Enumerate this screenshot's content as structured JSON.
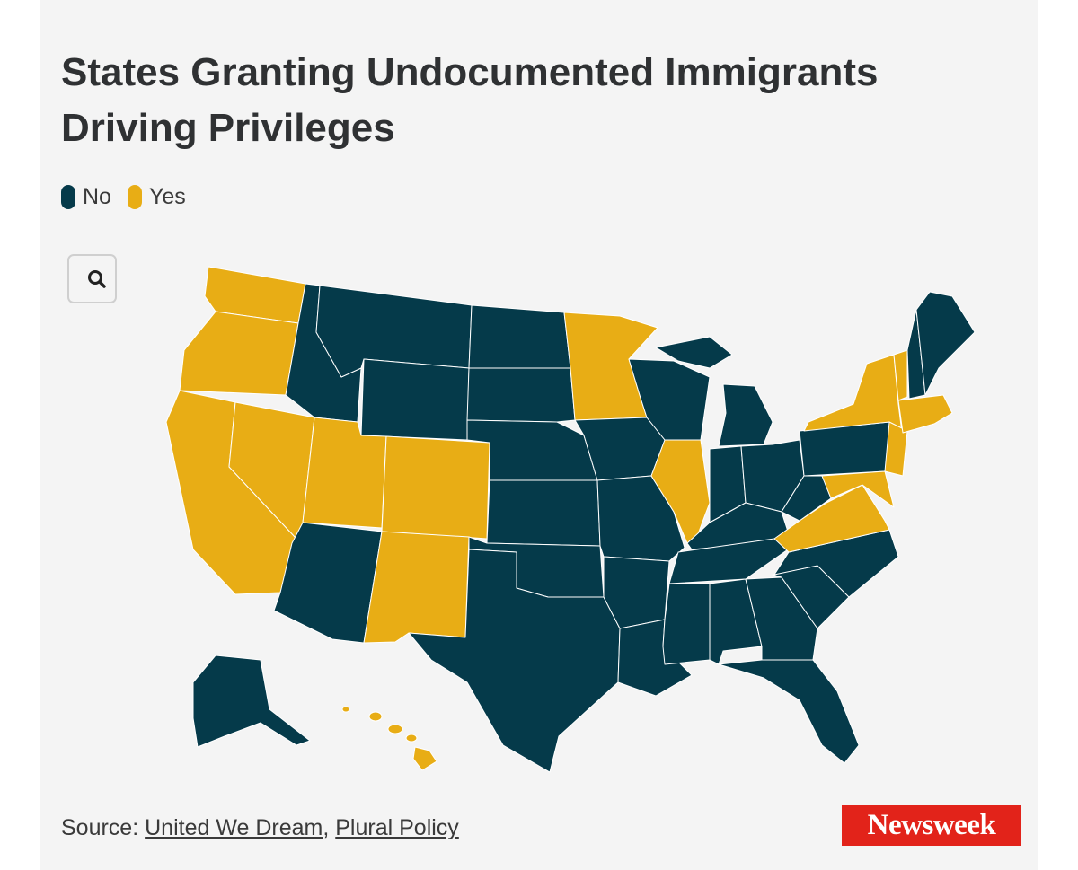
{
  "header": {
    "title": "States Granting Undocumented Immigrants Driving Privileges"
  },
  "legend": [
    {
      "label": "No",
      "color": "#053a4a"
    },
    {
      "label": "Yes",
      "color": "#e8ad15"
    }
  ],
  "footer": {
    "source": {
      "prefix": "Source:",
      "links": [
        "United We Dream",
        "Plural Policy"
      ],
      "separator": ","
    },
    "logo": "Newsweek"
  }
}
